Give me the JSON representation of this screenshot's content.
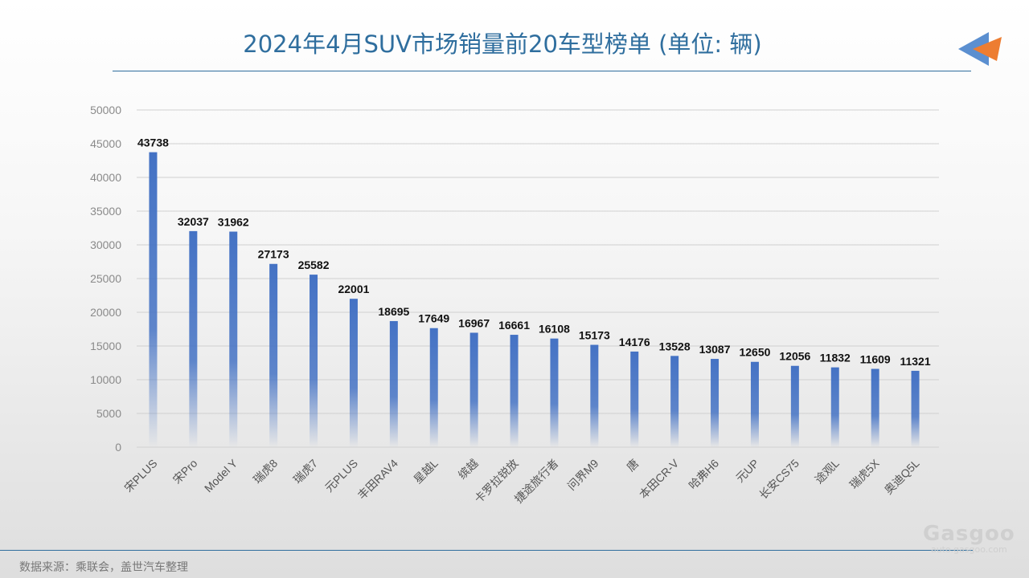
{
  "title": "2024年4月SUV市场销量前20车型榜单 (单位: 辆)",
  "source": "数据来源：乘联会，盖世汽车整理",
  "watermark": {
    "logo": "盖世汽车 Gasgoo",
    "url": "auto.gasgoo.com"
  },
  "colors": {
    "bar": "#4472c4",
    "title": "#2f6e9e",
    "arrow_blue": "#5b8fd0",
    "arrow_orange": "#ed7d31"
  },
  "chart_data": {
    "type": "bar",
    "categories": [
      "宋PLUS",
      "宋Pro",
      "Model Y",
      "瑞虎8",
      "瑞虎7",
      "元PLUS",
      "丰田RAV4",
      "星越L",
      "缤越",
      "卡罗拉锐放",
      "捷途旅行者",
      "问界M9",
      "唐",
      "本田CR-V",
      "哈弗H6",
      "元UP",
      "长安CS75",
      "途观L",
      "瑞虎5X",
      "奥迪Q5L"
    ],
    "values": [
      43738,
      32037,
      31962,
      27173,
      25582,
      22001,
      18695,
      17649,
      16967,
      16661,
      16108,
      15173,
      14176,
      13528,
      13087,
      12650,
      12056,
      11832,
      11609,
      11321
    ],
    "ylim": [
      0,
      50000
    ],
    "yticks": [
      0,
      5000,
      10000,
      15000,
      20000,
      25000,
      30000,
      35000,
      40000,
      45000,
      50000
    ],
    "grid": true,
    "data_labels": true
  }
}
